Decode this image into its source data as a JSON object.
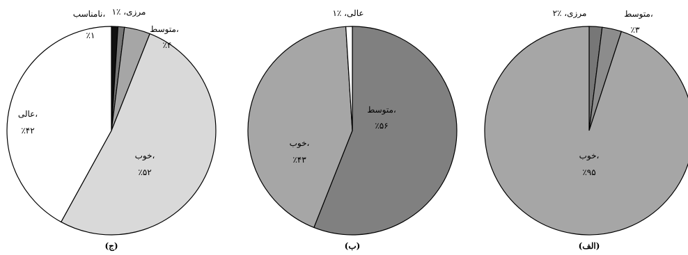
{
  "chart_data": [
    {
      "type": "pie",
      "caption": "(ج)",
      "slices": [
        {
          "category": "نامناسب",
          "value": 1,
          "color": "#111111",
          "label_line1": "نامناسب،",
          "label_line2": "٪۱"
        },
        {
          "category": "مرزی",
          "value": 1,
          "color": "#777777",
          "label_line1": "مرزی، ٪۱",
          "label_line2": ""
        },
        {
          "category": "متوسط",
          "value": 4,
          "color": "#a6a6a6",
          "label_line1": "متوسط،",
          "label_line2": "٪۴"
        },
        {
          "category": "خوب",
          "value": 52,
          "color": "#d9d9d9",
          "label_line1": "خوب،",
          "label_line2": "٪۵۲"
        },
        {
          "category": "عالی",
          "value": 42,
          "color": "#ffffff",
          "label_line1": "عالی،",
          "label_line2": "٪۴۲"
        }
      ]
    },
    {
      "type": "pie",
      "caption": "(ب)",
      "slices": [
        {
          "category": "متوسط",
          "value": 56,
          "color": "#808080",
          "label_line1": "متوسط،",
          "label_line2": "٪۵۶"
        },
        {
          "category": "خوب",
          "value": 43,
          "color": "#a6a6a6",
          "label_line1": "خوب،",
          "label_line2": "٪۴۳"
        },
        {
          "category": "عالی",
          "value": 1,
          "color": "#ffffff",
          "label_line1": "عالی، ٪۱",
          "label_line2": ""
        }
      ]
    },
    {
      "type": "pie",
      "caption": "(الف)",
      "slices": [
        {
          "category": "مرزی",
          "value": 2,
          "color": "#777777",
          "label_line1": "مرزی، ٪۲",
          "label_line2": ""
        },
        {
          "category": "متوسط",
          "value": 3,
          "color": "#8c8c8c",
          "label_line1": "متوسط،",
          "label_line2": "٪۳"
        },
        {
          "category": "خوب",
          "value": 95,
          "color": "#a6a6a6",
          "label_line1": "خوب،",
          "label_line2": "٪۹۵"
        }
      ]
    }
  ]
}
